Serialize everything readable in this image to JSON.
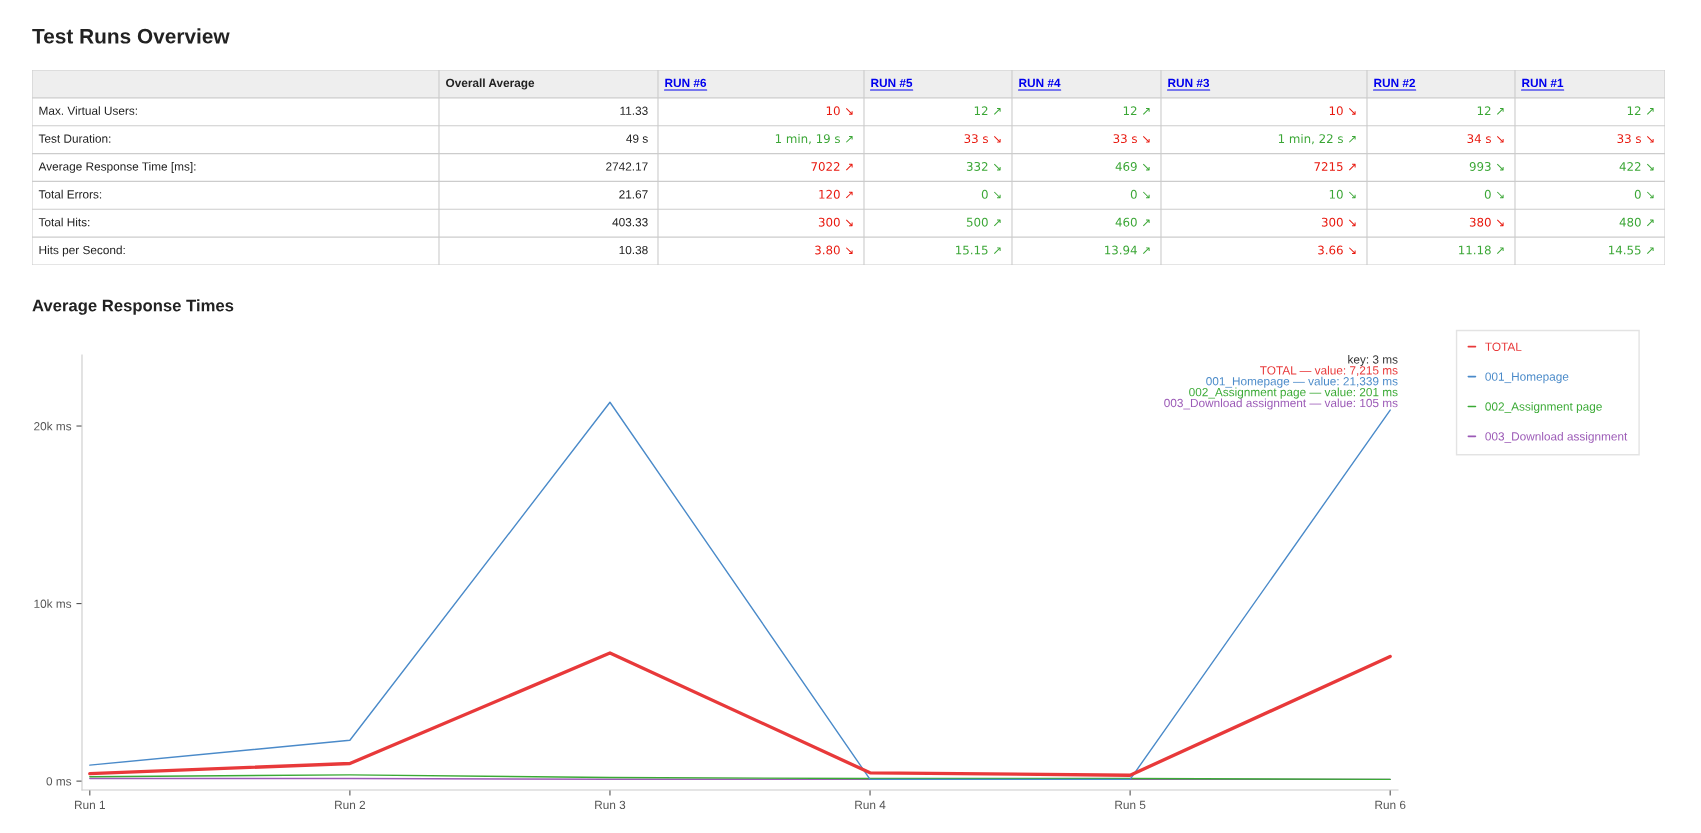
{
  "chart_data": [
    {
      "type": "other",
      "title": "Test Runs Overview",
      "categories": [
        "Overall Average",
        "RUN #6",
        "RUN #5",
        "RUN #4",
        "RUN #3",
        "RUN #2",
        "RUN #1"
      ],
      "y_categories": [
        "Max. Virtual Users:",
        "Test Duration:",
        "Average Response Time [ms]:",
        "Total Errors:",
        "Total Hits:",
        "Hits per Second:"
      ],
      "cell_labels": [
        [
          "11.33",
          "10 ↘",
          "12 ↗",
          "12 ↗",
          "10 ↘",
          "12 ↗",
          "12 ↗"
        ],
        [
          "49 s",
          "1 min, 19 s ↗",
          "33 s ↘",
          "33 s ↘",
          "1 min, 22 s ↗",
          "34 s ↘",
          "33 s ↘"
        ],
        [
          "2742.17",
          "7022 ↗",
          "332 ↘",
          "469 ↘",
          "7215 ↗",
          "993 ↘",
          "422 ↘"
        ],
        [
          "21.67",
          "120 ↗",
          "0 ↘",
          "0 ↘",
          "10 ↘",
          "0 ↘",
          "0 ↘"
        ],
        [
          "403.33",
          "300 ↘",
          "500 ↗",
          "460 ↗",
          "300 ↘",
          "380 ↘",
          "480 ↗"
        ],
        [
          "10.38",
          "3.80 ↘",
          "15.15 ↗",
          "13.94 ↗",
          "3.66 ↘",
          "11.18 ↗",
          "14.55 ↗"
        ]
      ],
      "colors": [
        [
          null,
          "#e8190f",
          "#3aa635",
          "#3aa635",
          "#e8190f",
          "#3aa635",
          "#3aa635"
        ],
        [
          null,
          "#3aa635",
          "#e8190f",
          "#e8190f",
          "#3aa635",
          "#e8190f",
          "#e8190f"
        ],
        [
          null,
          "#e8190f",
          "#3aa635",
          "#3aa635",
          "#e8190f",
          "#3aa635",
          "#3aa635"
        ],
        [
          null,
          "#e8190f",
          "#3aa635",
          "#3aa635",
          "#3aa635",
          "#3aa635",
          "#3aa635"
        ],
        [
          null,
          "#e8190f",
          "#3aa635",
          "#3aa635",
          "#e8190f",
          "#e8190f",
          "#3aa635"
        ],
        [
          null,
          "#e8190f",
          "#3aa635",
          "#3aa635",
          "#e8190f",
          "#3aa635",
          "#3aa635"
        ]
      ]
    },
    {
      "type": "line",
      "title": "Average Response Times",
      "categories": [
        "Run 1",
        "Run 2",
        "Run 3",
        "Run 4",
        "Run 5",
        "Run 6"
      ],
      "series": [
        {
          "name": "TOTAL",
          "color": "#e8393a",
          "values": [
            422,
            993,
            7215,
            469,
            332,
            7022
          ]
        },
        {
          "name": "001_Homepage",
          "color": "#4a8ac9",
          "values": [
            900,
            2300,
            21339,
            100,
            100,
            20900
          ]
        },
        {
          "name": "002_Assignment page",
          "color": "#3aaa35",
          "values": [
            250,
            350,
            201,
            150,
            150,
            100
          ]
        },
        {
          "name": "003_Download assignment",
          "color": "#9b59b6",
          "values": [
            150,
            150,
            105,
            100,
            100,
            100
          ]
        }
      ],
      "ylim": [
        -500,
        24000
      ],
      "yticks": [
        {
          "value": 0,
          "label": "0 ms"
        },
        {
          "value": 10000,
          "label": "10k ms"
        },
        {
          "value": 20000,
          "label": "20k ms"
        }
      ],
      "annotations": [
        "key: 3 ms",
        "TOTAL — value: 7,215 ms",
        "001_Homepage — value: 21,339 ms",
        "002_Assignment page — value: 201 ms",
        "003_Download assignment — value: 105 ms"
      ],
      "legend": "right",
      "grid": false
    }
  ]
}
